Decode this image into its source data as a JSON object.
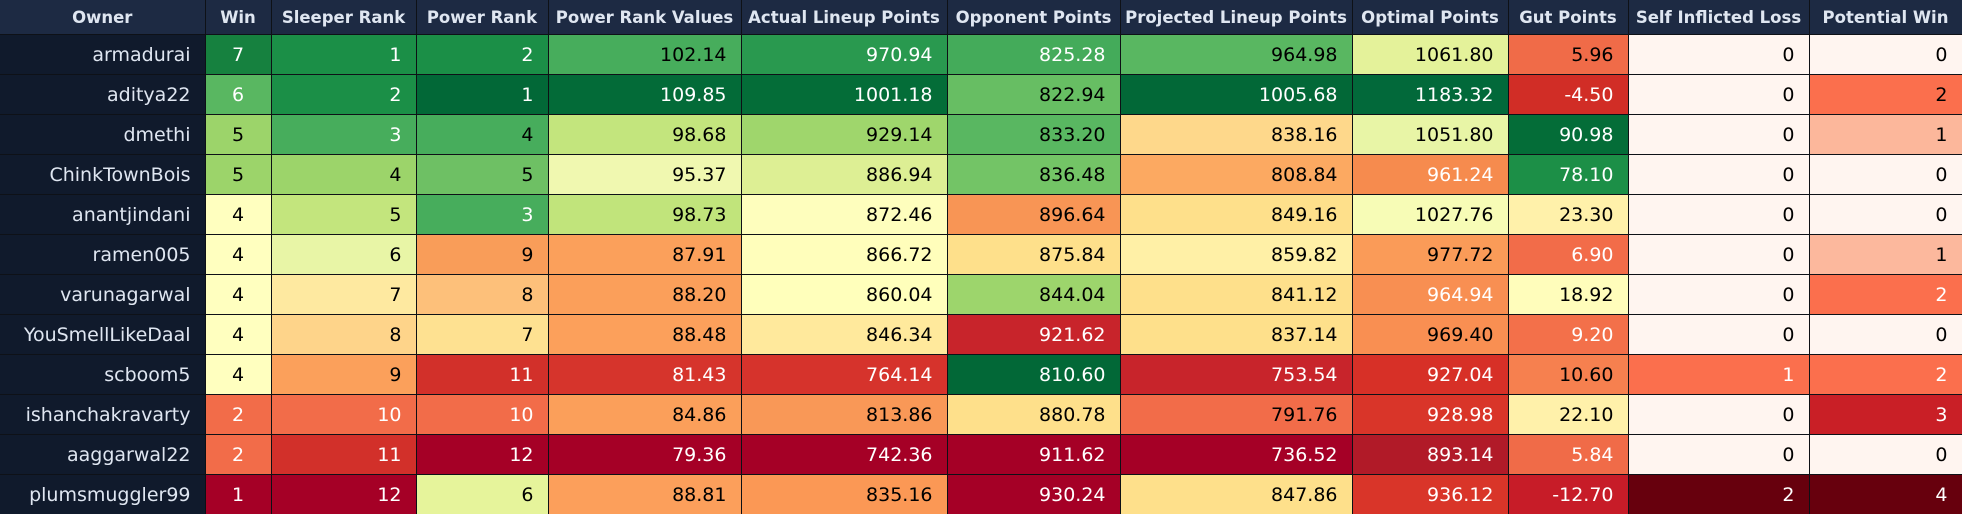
{
  "columns": [
    {
      "key": "owner",
      "label": "Owner",
      "width": 205
    },
    {
      "key": "win",
      "label": "Win",
      "width": 66
    },
    {
      "key": "sleeper",
      "label": "Sleeper Rank",
      "width": 145
    },
    {
      "key": "power",
      "label": "Power Rank",
      "width": 132
    },
    {
      "key": "prv",
      "label": "Power Rank Values",
      "width": 193
    },
    {
      "key": "alp",
      "label": "Actual Lineup Points",
      "width": 206
    },
    {
      "key": "opp",
      "label": "Opponent Points",
      "width": 173
    },
    {
      "key": "plp",
      "label": "Projected Lineup Points",
      "width": 232
    },
    {
      "key": "opt",
      "label": "Optimal Points",
      "width": 156
    },
    {
      "key": "gut",
      "label": "Gut Points",
      "width": 120
    },
    {
      "key": "sil",
      "label": "Self Inflicted Loss",
      "width": 181
    },
    {
      "key": "pw",
      "label": "Potential Win",
      "width": 153
    }
  ],
  "rows": [
    {
      "owner": "armadurai",
      "win": "7",
      "sleeper": "1",
      "power": "2",
      "prv": "102.14",
      "alp": "970.94",
      "opp": "825.28",
      "plp": "964.98",
      "opt": "1061.80",
      "gut": "5.96",
      "sil": "0",
      "pw": "0"
    },
    {
      "owner": "aditya22",
      "win": "6",
      "sleeper": "2",
      "power": "1",
      "prv": "109.85",
      "alp": "1001.18",
      "opp": "822.94",
      "plp": "1005.68",
      "opt": "1183.32",
      "gut": "-4.50",
      "sil": "0",
      "pw": "2"
    },
    {
      "owner": "dmethi",
      "win": "5",
      "sleeper": "3",
      "power": "4",
      "prv": "98.68",
      "alp": "929.14",
      "opp": "833.20",
      "plp": "838.16",
      "opt": "1051.80",
      "gut": "90.98",
      "sil": "0",
      "pw": "1"
    },
    {
      "owner": "ChinkTownBois",
      "win": "5",
      "sleeper": "4",
      "power": "5",
      "prv": "95.37",
      "alp": "886.94",
      "opp": "836.48",
      "plp": "808.84",
      "opt": "961.24",
      "gut": "78.10",
      "sil": "0",
      "pw": "0"
    },
    {
      "owner": "anantjindani",
      "win": "4",
      "sleeper": "5",
      "power": "3",
      "prv": "98.73",
      "alp": "872.46",
      "opp": "896.64",
      "plp": "849.16",
      "opt": "1027.76",
      "gut": "23.30",
      "sil": "0",
      "pw": "0"
    },
    {
      "owner": "ramen005",
      "win": "4",
      "sleeper": "6",
      "power": "9",
      "prv": "87.91",
      "alp": "866.72",
      "opp": "875.84",
      "plp": "859.82",
      "opt": "977.72",
      "gut": "6.90",
      "sil": "0",
      "pw": "1"
    },
    {
      "owner": "varunagarwal",
      "win": "4",
      "sleeper": "7",
      "power": "8",
      "prv": "88.20",
      "alp": "860.04",
      "opp": "844.04",
      "plp": "841.12",
      "opt": "964.94",
      "gut": "18.92",
      "sil": "0",
      "pw": "2"
    },
    {
      "owner": "YouSmellLikeDaal",
      "win": "4",
      "sleeper": "8",
      "power": "7",
      "prv": "88.48",
      "alp": "846.34",
      "opp": "921.62",
      "plp": "837.14",
      "opt": "969.40",
      "gut": "9.20",
      "sil": "0",
      "pw": "0"
    },
    {
      "owner": "scboom5",
      "win": "4",
      "sleeper": "9",
      "power": "11",
      "prv": "81.43",
      "alp": "764.14",
      "opp": "810.60",
      "plp": "753.54",
      "opt": "927.04",
      "gut": "10.60",
      "sil": "1",
      "pw": "2"
    },
    {
      "owner": "ishanchakravarty",
      "win": "2",
      "sleeper": "10",
      "power": "10",
      "prv": "84.86",
      "alp": "813.86",
      "opp": "880.78",
      "plp": "791.76",
      "opt": "928.98",
      "gut": "22.10",
      "sil": "0",
      "pw": "3"
    },
    {
      "owner": "aaggarwal22",
      "win": "2",
      "sleeper": "11",
      "power": "12",
      "prv": "79.36",
      "alp": "742.36",
      "opp": "911.62",
      "plp": "736.52",
      "opt": "893.14",
      "gut": "5.84",
      "sil": "0",
      "pw": "0"
    },
    {
      "owner": "plumsmuggler99",
      "win": "1",
      "sleeper": "12",
      "power": "6",
      "prv": "88.81",
      "alp": "835.16",
      "opp": "930.24",
      "plp": "847.86",
      "opt": "936.12",
      "gut": "-12.70",
      "sil": "2",
      "pw": "4"
    }
  ],
  "colors": {
    "header_bg": "#1d2a43",
    "owner_bg": "#101a2c",
    "text_light": "#ffffff",
    "text_dark": "#000000",
    "cells": [
      [
        "#16813f",
        "#1b8f47",
        "#1b8f47",
        "#47ad5c",
        "#29994f",
        "#44ab5a",
        "#59b761",
        "#e4f29a",
        "#f06b48",
        "#fff5f0",
        "#fff5f0"
      ],
      [
        "#59b761",
        "#1b8f47",
        "#026837",
        "#036b38",
        "#046d38",
        "#67be63",
        "#026837",
        "#02693a",
        "#d12d26",
        "#fff5f0",
        "#fb6f4d"
      ],
      [
        "#9cd46a",
        "#47ad5c",
        "#47ad5c",
        "#c3e57d",
        "#9fd66c",
        "#59b761",
        "#fed88b",
        "#e8f5a6",
        "#046d38",
        "#fff5f0",
        "#fcb79b"
      ],
      [
        "#9cd46a",
        "#9cd46a",
        "#6ec064",
        "#f0f8b0",
        "#ddef94",
        "#73c466",
        "#fca961",
        "#f68b4e",
        "#1c8f47",
        "#fff5f0",
        "#fff5f0"
      ],
      [
        "#ffffbf",
        "#c3e57d",
        "#47ad5c",
        "#c1e47b",
        "#fefebd",
        "#f89555",
        "#fee08b",
        "#f7fcb6",
        "#fff1aa",
        "#fff5f0",
        "#fff5f0"
      ],
      [
        "#ffffbf",
        "#e8f5a6",
        "#f99d59",
        "#fba05b",
        "#fffebb",
        "#fee08b",
        "#fff0a6",
        "#fa9b58",
        "#f26c49",
        "#fff5f0",
        "#fcb89d"
      ],
      [
        "#ffffbf",
        "#fee9a0",
        "#fdc07a",
        "#fb9f5a",
        "#ffffbb",
        "#9dd56c",
        "#fee08b",
        "#f88f52",
        "#fffdbb",
        "#fff5f0",
        "#fb6f4d"
      ],
      [
        "#ffffbf",
        "#fed48a",
        "#fee191",
        "#fca05b",
        "#ffe99c",
        "#c8242b",
        "#fee08b",
        "#f98f52",
        "#f3704a",
        "#fff5f0",
        "#fff5f0"
      ],
      [
        "#ffffbf",
        "#fba05b",
        "#d2302a",
        "#d6342c",
        "#d6332c",
        "#026837",
        "#c8242b",
        "#d73027",
        "#f6804f",
        "#fb6f4d",
        "#fb6f4d"
      ],
      [
        "#f26c49",
        "#f26c49",
        "#f26c49",
        "#fb9f5a",
        "#f99857",
        "#fee08b",
        "#f26c49",
        "#d93529",
        "#fff1aa",
        "#fff5f0",
        "#c91f26"
      ],
      [
        "#f26c49",
        "#d2302a",
        "#a50026",
        "#a50026",
        "#a50026",
        "#a50026",
        "#a50026",
        "#b11a28",
        "#f06b48",
        "#fff5f0",
        "#fff5f0"
      ],
      [
        "#a50026",
        "#a50026",
        "#e6f49b",
        "#fc9f5b",
        "#fb9855",
        "#a50026",
        "#fee08b",
        "#d93529",
        "#c71c28",
        "#67000d",
        "#67000d"
      ]
    ],
    "cell_text_light": [
      [
        "w",
        "w",
        "w",
        "d",
        "w",
        "w",
        "d",
        "d",
        "d",
        "d",
        "d"
      ],
      [
        "w",
        "w",
        "w",
        "w",
        "w",
        "d",
        "w",
        "w",
        "w",
        "d",
        "d"
      ],
      [
        "d",
        "w",
        "d",
        "d",
        "d",
        "d",
        "d",
        "d",
        "w",
        "d",
        "d"
      ],
      [
        "d",
        "d",
        "d",
        "d",
        "d",
        "d",
        "d",
        "w",
        "w",
        "d",
        "d"
      ],
      [
        "d",
        "d",
        "w",
        "d",
        "d",
        "d",
        "d",
        "d",
        "d",
        "d",
        "d"
      ],
      [
        "d",
        "d",
        "d",
        "d",
        "d",
        "d",
        "d",
        "d",
        "w",
        "d",
        "d"
      ],
      [
        "d",
        "d",
        "d",
        "d",
        "d",
        "d",
        "d",
        "w",
        "d",
        "d",
        "w"
      ],
      [
        "d",
        "d",
        "d",
        "d",
        "d",
        "w",
        "d",
        "d",
        "w",
        "d",
        "d"
      ],
      [
        "d",
        "d",
        "w",
        "w",
        "w",
        "w",
        "w",
        "w",
        "d",
        "w",
        "w"
      ],
      [
        "w",
        "w",
        "w",
        "d",
        "d",
        "d",
        "d",
        "w",
        "d",
        "d",
        "w"
      ],
      [
        "w",
        "w",
        "w",
        "w",
        "w",
        "w",
        "w",
        "w",
        "w",
        "d",
        "d"
      ],
      [
        "w",
        "w",
        "d",
        "d",
        "d",
        "w",
        "d",
        "w",
        "w",
        "w",
        "w"
      ]
    ]
  }
}
